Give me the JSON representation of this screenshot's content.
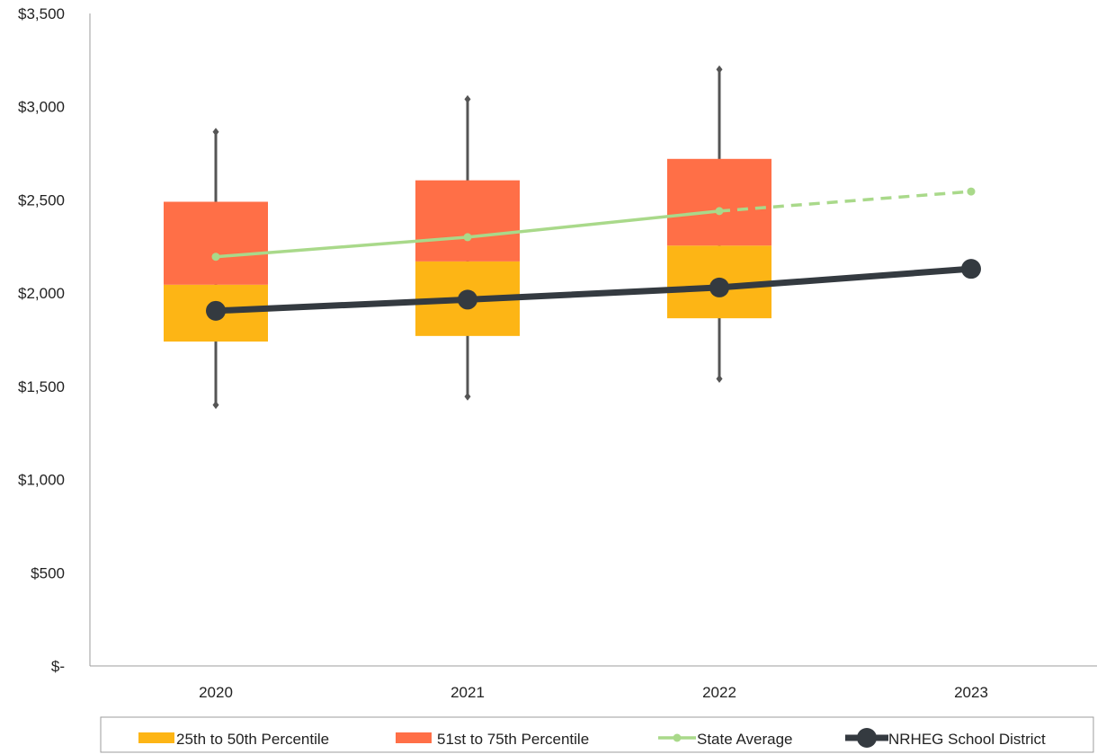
{
  "chart_data": {
    "type": "box",
    "categories": [
      "2020",
      "2021",
      "2022",
      "2023"
    ],
    "y_ticks": [
      "$-",
      "$500",
      "$1,000",
      "$1,500",
      "$2,000",
      "$2,500",
      "$3,000",
      "$3,500"
    ],
    "y_tick_values": [
      0,
      500,
      1000,
      1500,
      2000,
      2500,
      3000,
      3500
    ],
    "ylim": [
      0,
      3500
    ],
    "boxes": [
      {
        "category": "2020",
        "min": 1400,
        "p25": 1740,
        "median": 2045,
        "p75": 2490,
        "max": 2865
      },
      {
        "category": "2021",
        "min": 1445,
        "p25": 1770,
        "median": 2170,
        "p75": 2605,
        "max": 3040
      },
      {
        "category": "2022",
        "min": 1540,
        "p25": 1865,
        "median": 2255,
        "p75": 2720,
        "max": 3200
      }
    ],
    "series": [
      {
        "name": "State Average",
        "values": [
          2195,
          2300,
          2440,
          2545
        ],
        "projected_from_index": 2
      },
      {
        "name": "NRHEG School District",
        "values": [
          1905,
          1965,
          2030,
          2130
        ]
      }
    ],
    "legend": {
      "position": "bottom",
      "items": [
        {
          "label": "25th to 50th Percentile",
          "kind": "box-lower"
        },
        {
          "label": "51st to 75th Percentile",
          "kind": "box-upper"
        },
        {
          "label": "State Average",
          "kind": "state-line"
        },
        {
          "label": "NRHEG School District",
          "kind": "district-line"
        }
      ]
    },
    "grid": false,
    "colors": {
      "box_lower": "#FDB515",
      "box_upper": "#FF6F47",
      "state_average": "#A9D98A",
      "district": "#343A40",
      "whisker": "#555555",
      "axis": "#9E9E9E"
    }
  }
}
